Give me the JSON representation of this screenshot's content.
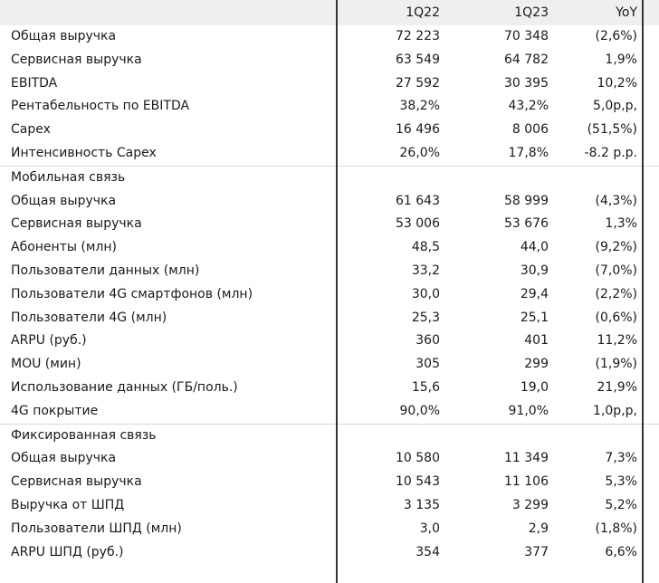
{
  "header": {
    "col_1q22": "1Q22",
    "col_1q23": "1Q23",
    "col_yoy": "YoY"
  },
  "rows": [
    {
      "label": "Общая выручка",
      "q22": "72 223",
      "q23": "70 348",
      "yoy": "(2,6%)"
    },
    {
      "label": "Сервисная выручка",
      "q22": "63 549",
      "q23": "64 782",
      "yoy": "1,9%"
    },
    {
      "label": "EBITDA",
      "q22": "27 592",
      "q23": "30 395",
      "yoy": "10,2%"
    },
    {
      "label": "Рентабельность по EBITDA",
      "q22": "38,2%",
      "q23": "43,2%",
      "yoy": "5,0р,р,"
    },
    {
      "label": "Capex",
      "q22": "16 496",
      "q23": "8 006",
      "yoy": "(51,5%)"
    },
    {
      "label": "Интенсивность Capex",
      "q22": "26,0%",
      "q23": "17,8%",
      "yoy": "-8.2 р.р."
    },
    {
      "label": "Мобильная связь",
      "section": true
    },
    {
      "label": "Общая выручка",
      "q22": "61 643",
      "q23": "58 999",
      "yoy": "(4,3%)"
    },
    {
      "label": "Сервисная выручка",
      "q22": "53 006",
      "q23": "53 676",
      "yoy": "1,3%"
    },
    {
      "label": "Абоненты (млн)",
      "q22": "48,5",
      "q23": "44,0",
      "yoy": "(9,2%)"
    },
    {
      "label": "Пользователи данных (млн)",
      "q22": "33,2",
      "q23": "30,9",
      "yoy": "(7,0%)"
    },
    {
      "label": "Пользователи 4G смартфонов (млн)",
      "q22": "30,0",
      "q23": "29,4",
      "yoy": "(2,2%)"
    },
    {
      "label": "Пользователи 4G (млн)",
      "q22": "25,3",
      "q23": "25,1",
      "yoy": "(0,6%)"
    },
    {
      "label": "ARPU (руб.)",
      "q22": "360",
      "q23": "401",
      "yoy": "11,2%"
    },
    {
      "label": "MOU (мин)",
      "q22": "305",
      "q23": "299",
      "yoy": "(1,9%)"
    },
    {
      "label": "Использование данных (ГБ/поль.)",
      "q22": "15,6",
      "q23": "19,0",
      "yoy": "21,9%"
    },
    {
      "label": "4G покрытие",
      "q22": "90,0%",
      "q23": "91,0%",
      "yoy": "1,0р,р,"
    },
    {
      "label": "Фиксированная связь",
      "section": true
    },
    {
      "label": "Общая выручка",
      "q22": "10 580",
      "q23": "11 349",
      "yoy": "7,3%"
    },
    {
      "label": "Сервисная выручка",
      "q22": "10 543",
      "q23": "11 106",
      "yoy": "5,3%"
    },
    {
      "label": "Выручка от ШПД",
      "q22": "3 135",
      "q23": "3 299",
      "yoy": "5,2%"
    },
    {
      "label": "Пользователи ШПД (млн)",
      "q22": "3,0",
      "q23": "2,9",
      "yoy": "(1,8%)"
    },
    {
      "label": " ARPU ШПД (руб.)",
      "q22": "354",
      "q23": "377",
      "yoy": "6,6%"
    }
  ]
}
